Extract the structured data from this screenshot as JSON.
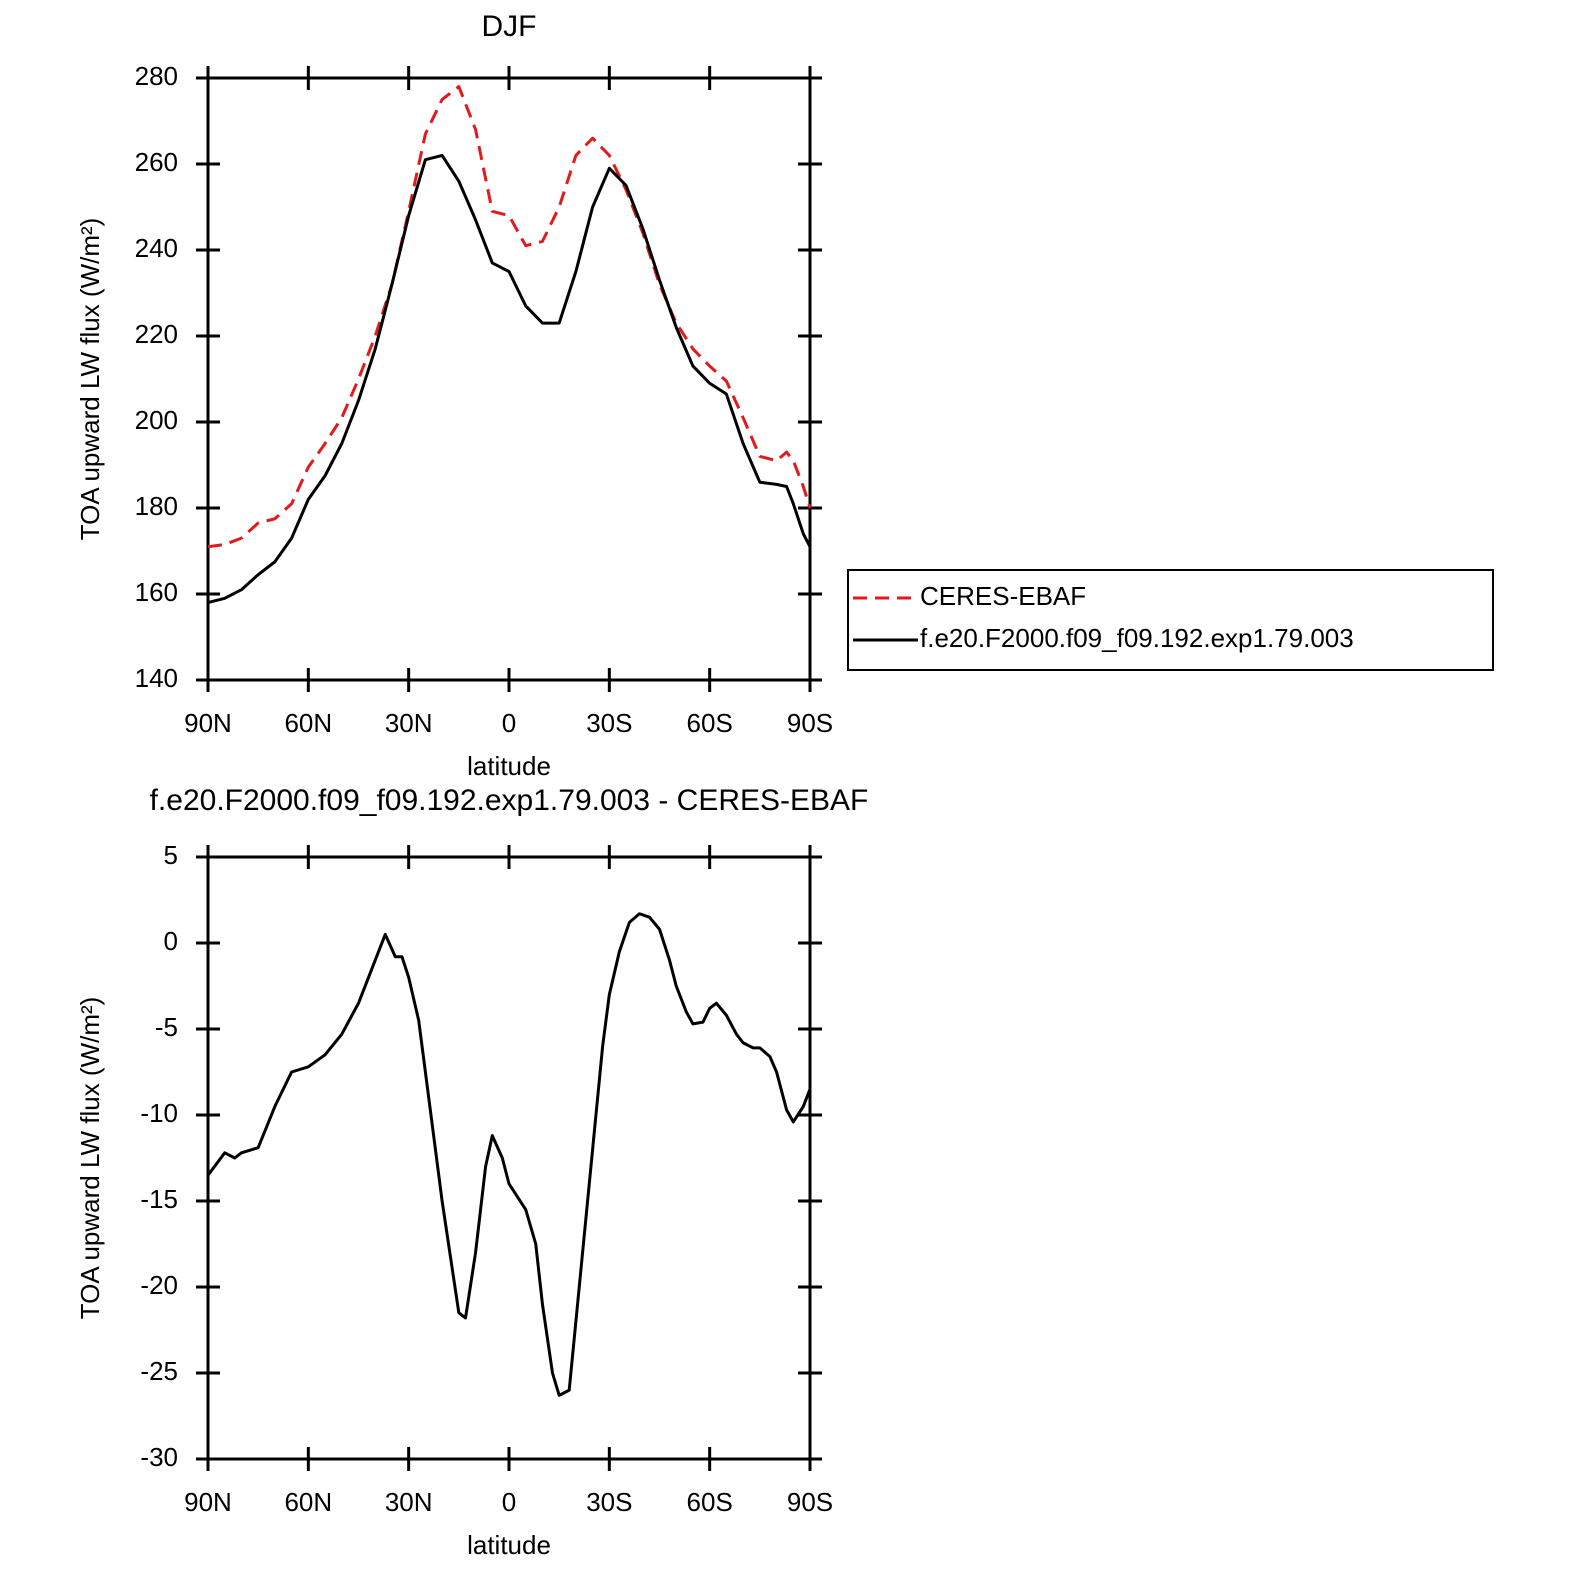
{
  "chart_data": [
    {
      "type": "line",
      "title": "DJF",
      "xlabel": "latitude",
      "ylabel": "TOA upward LW flux (W/m²)",
      "x": [
        90,
        85,
        80,
        75,
        70,
        65,
        60,
        55,
        50,
        45,
        40,
        35,
        30,
        25,
        20,
        15,
        10,
        5,
        0,
        -5,
        -10,
        -15,
        -20,
        -25,
        -30,
        -35,
        -40,
        -45,
        -50,
        -55,
        -60,
        -65,
        -70,
        -75,
        -80,
        -83,
        -85,
        -88,
        -90
      ],
      "series": [
        {
          "name": "CERES-EBAF",
          "color": "#e31a1c",
          "style": "dashed",
          "values": [
            171,
            171.5,
            173,
            176.5,
            177.5,
            181,
            189.5,
            195,
            201,
            210,
            220,
            232,
            249,
            267,
            275,
            278,
            268,
            249,
            248,
            241,
            242,
            250,
            262,
            266,
            262,
            254,
            244,
            232,
            223,
            217,
            213,
            209.5,
            201,
            192,
            191,
            193,
            191,
            185,
            180
          ]
        },
        {
          "name": "f.e20.F2000.f09_f09.192.exp1.79.003",
          "color": "#000000",
          "style": "solid",
          "values": [
            158,
            159,
            161,
            164.5,
            167.5,
            173,
            182,
            187.5,
            195,
            205,
            217,
            232,
            248,
            261,
            262,
            256,
            247,
            237,
            235,
            227,
            223,
            223,
            235,
            250,
            259,
            255,
            245,
            233,
            222,
            213,
            209,
            206.5,
            195,
            186,
            185.5,
            185,
            181,
            174,
            171
          ]
        }
      ],
      "xlim": [
        90,
        -90
      ],
      "xticks": [
        {
          "value": 90,
          "label": "90N"
        },
        {
          "value": 60,
          "label": "60N"
        },
        {
          "value": 30,
          "label": "30N"
        },
        0,
        {
          "value": -30,
          "label": "30S"
        },
        {
          "value": -60,
          "label": "60S"
        },
        {
          "value": -90,
          "label": "90S"
        }
      ],
      "ylim": [
        140,
        280
      ],
      "yticks": [
        140,
        160,
        180,
        200,
        220,
        240,
        260,
        280
      ],
      "legend": "right"
    },
    {
      "type": "line",
      "title": "f.e20.F2000.f09_f09.192.exp1.79.003 - CERES-EBAF",
      "xlabel": "latitude",
      "ylabel": "TOA upward LW flux (W/m²)",
      "x": [
        90,
        85,
        82,
        80,
        75,
        70,
        65,
        60,
        55,
        50,
        45,
        40,
        37,
        34,
        32,
        30,
        27,
        25,
        20,
        15,
        13,
        10,
        7,
        5,
        2,
        0,
        -5,
        -8,
        -10,
        -13,
        -15,
        -18,
        -20,
        -25,
        -28,
        -30,
        -33,
        -36,
        -39,
        -42,
        -45,
        -48,
        -50,
        -53,
        -55,
        -58,
        -60,
        -62,
        -65,
        -68,
        -70,
        -73,
        -75,
        -78,
        -80,
        -83,
        -85,
        -88,
        -90
      ],
      "series": [
        {
          "color": "#000000",
          "style": "solid",
          "values": [
            -13.5,
            -12.2,
            -12.5,
            -12.2,
            -11.9,
            -9.5,
            -7.5,
            -7.2,
            -6.5,
            -5.3,
            -3.5,
            -1,
            0.5,
            -0.8,
            -0.8,
            -2,
            -4.5,
            -7.5,
            -15,
            -21.5,
            -21.8,
            -18,
            -13,
            -11.2,
            -12.5,
            -14,
            -15.5,
            -17.5,
            -21,
            -25,
            -26.3,
            -26,
            -22,
            -12,
            -6,
            -3,
            -0.5,
            1.2,
            1.7,
            1.5,
            0.8,
            -1,
            -2.5,
            -4,
            -4.7,
            -4.6,
            -3.8,
            -3.5,
            -4.2,
            -5.3,
            -5.8,
            -6.1,
            -6.1,
            -6.6,
            -7.5,
            -9.7,
            -10.4,
            -9.5,
            -8.5
          ]
        }
      ],
      "xlim": [
        90,
        -90
      ],
      "xticks": [
        {
          "value": 90,
          "label": "90N"
        },
        {
          "value": 60,
          "label": "60N"
        },
        {
          "value": 30,
          "label": "30N"
        },
        0,
        {
          "value": -30,
          "label": "30S"
        },
        {
          "value": -60,
          "label": "60S"
        },
        {
          "value": -90,
          "label": "90S"
        }
      ],
      "ylim": [
        -30,
        5
      ],
      "yticks": [
        -30,
        -25,
        -20,
        -15,
        -10,
        -5,
        0,
        5
      ]
    }
  ]
}
